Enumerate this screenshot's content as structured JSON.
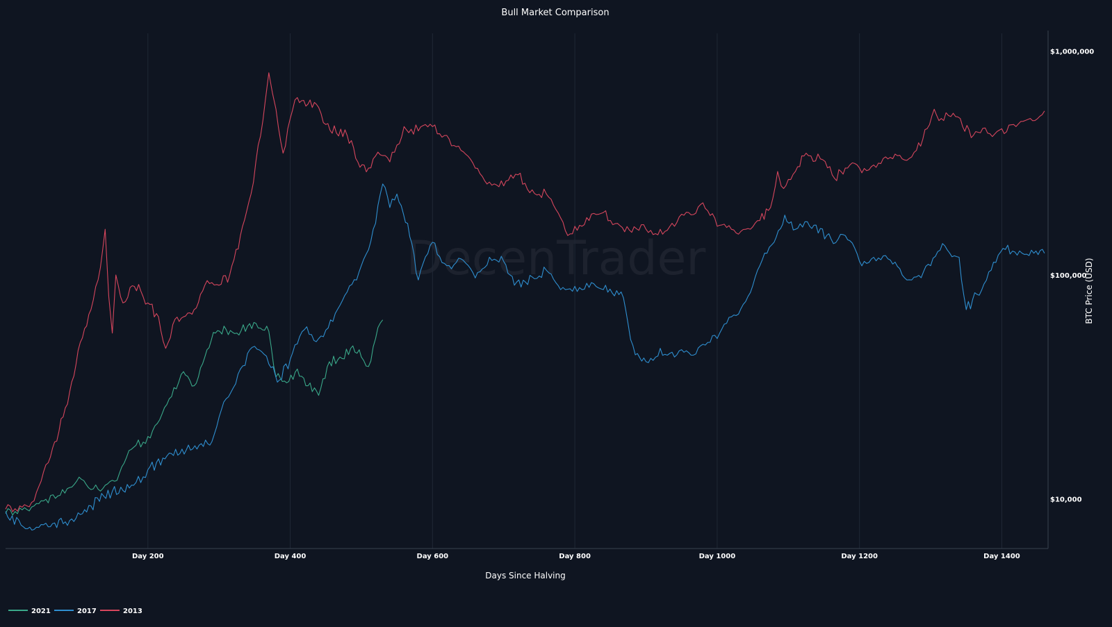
{
  "chart_data": {
    "type": "line",
    "title": "Bull Market Comparison",
    "xlabel": "Days Since Halving",
    "ylabel": "BTC Price (USD)",
    "y_scale": "log",
    "xlim": [
      0,
      1465
    ],
    "ylim": [
      6000,
      1200000
    ],
    "x_ticks": [
      200,
      400,
      600,
      800,
      1000,
      1200,
      1400
    ],
    "x_tick_labels": [
      "Day 200",
      "Day 400",
      "Day 600",
      "Day 800",
      "Day 1000",
      "Day 1200",
      "Day 1400"
    ],
    "y_ticks": [
      10000,
      100000,
      1000000
    ],
    "y_tick_labels": [
      "$10,000",
      "$100,000",
      "$1,000,000"
    ],
    "grid": true,
    "legend_position": "bottom-left",
    "watermark": "DecenTrader",
    "series": [
      {
        "name": "2021",
        "color": "#3aa98a",
        "points": [
          [
            0,
            8600
          ],
          [
            20,
            9100
          ],
          [
            40,
            9300
          ],
          [
            60,
            9600
          ],
          [
            80,
            11000
          ],
          [
            100,
            12000
          ],
          [
            120,
            11000
          ],
          [
            140,
            11500
          ],
          [
            160,
            13000
          ],
          [
            180,
            17000
          ],
          [
            200,
            19000
          ],
          [
            220,
            24000
          ],
          [
            240,
            31000
          ],
          [
            250,
            37000
          ],
          [
            265,
            32000
          ],
          [
            280,
            43000
          ],
          [
            295,
            55000
          ],
          [
            310,
            57000
          ],
          [
            325,
            55000
          ],
          [
            340,
            59000
          ],
          [
            355,
            58000
          ],
          [
            370,
            56000
          ],
          [
            380,
            35000
          ],
          [
            395,
            33000
          ],
          [
            410,
            38000
          ],
          [
            425,
            32000
          ],
          [
            440,
            29000
          ],
          [
            455,
            41000
          ],
          [
            470,
            43000
          ],
          [
            485,
            47000
          ],
          [
            500,
            43000
          ],
          [
            510,
            39000
          ],
          [
            520,
            52000
          ],
          [
            530,
            63000
          ]
        ]
      },
      {
        "name": "2017",
        "color": "#2f8fd0",
        "points": [
          [
            0,
            8800
          ],
          [
            25,
            7500
          ],
          [
            40,
            7300
          ],
          [
            60,
            7500
          ],
          [
            90,
            8000
          ],
          [
            120,
            9300
          ],
          [
            150,
            10800
          ],
          [
            180,
            11500
          ],
          [
            200,
            13500
          ],
          [
            230,
            16000
          ],
          [
            260,
            16500
          ],
          [
            290,
            18000
          ],
          [
            310,
            28000
          ],
          [
            330,
            38000
          ],
          [
            350,
            48000
          ],
          [
            370,
            40000
          ],
          [
            385,
            34000
          ],
          [
            400,
            42000
          ],
          [
            420,
            57000
          ],
          [
            440,
            52000
          ],
          [
            460,
            62000
          ],
          [
            480,
            84000
          ],
          [
            500,
            110000
          ],
          [
            520,
            170000
          ],
          [
            530,
            255000
          ],
          [
            540,
            200000
          ],
          [
            550,
            230000
          ],
          [
            565,
            170000
          ],
          [
            580,
            95000
          ],
          [
            600,
            140000
          ],
          [
            620,
            110000
          ],
          [
            640,
            118000
          ],
          [
            660,
            97000
          ],
          [
            680,
            120000
          ],
          [
            700,
            115000
          ],
          [
            715,
            90000
          ],
          [
            740,
            98000
          ],
          [
            760,
            105000
          ],
          [
            780,
            86000
          ],
          [
            800,
            89000
          ],
          [
            820,
            88000
          ],
          [
            840,
            86000
          ],
          [
            865,
            84000
          ],
          [
            885,
            44000
          ],
          [
            900,
            41000
          ],
          [
            920,
            47000
          ],
          [
            940,
            43000
          ],
          [
            960,
            45000
          ],
          [
            980,
            49000
          ],
          [
            1000,
            52000
          ],
          [
            1020,
            65000
          ],
          [
            1040,
            76000
          ],
          [
            1060,
            110000
          ],
          [
            1080,
            140000
          ],
          [
            1095,
            185000
          ],
          [
            1110,
            160000
          ],
          [
            1130,
            165000
          ],
          [
            1160,
            145000
          ],
          [
            1180,
            150000
          ],
          [
            1200,
            115000
          ],
          [
            1220,
            120000
          ],
          [
            1240,
            118000
          ],
          [
            1260,
            100000
          ],
          [
            1280,
            98000
          ],
          [
            1300,
            110000
          ],
          [
            1320,
            135000
          ],
          [
            1340,
            120000
          ],
          [
            1350,
            70000
          ],
          [
            1365,
            82000
          ],
          [
            1385,
            105000
          ],
          [
            1405,
            130000
          ],
          [
            1425,
            128000
          ],
          [
            1445,
            125000
          ],
          [
            1460,
            125000
          ]
        ]
      },
      {
        "name": "2013",
        "color": "#d6465d",
        "points": [
          [
            0,
            9000
          ],
          [
            20,
            9300
          ],
          [
            40,
            9800
          ],
          [
            50,
            12000
          ],
          [
            60,
            14500
          ],
          [
            75,
            20000
          ],
          [
            90,
            30000
          ],
          [
            105,
            50000
          ],
          [
            120,
            70000
          ],
          [
            130,
            95000
          ],
          [
            140,
            160000
          ],
          [
            145,
            80000
          ],
          [
            150,
            55000
          ],
          [
            155,
            100000
          ],
          [
            165,
            75000
          ],
          [
            175,
            88000
          ],
          [
            190,
            85000
          ],
          [
            200,
            75000
          ],
          [
            215,
            65000
          ],
          [
            225,
            47000
          ],
          [
            235,
            60000
          ],
          [
            250,
            65000
          ],
          [
            265,
            70000
          ],
          [
            280,
            90000
          ],
          [
            300,
            90000
          ],
          [
            315,
            100000
          ],
          [
            330,
            150000
          ],
          [
            345,
            230000
          ],
          [
            355,
            380000
          ],
          [
            365,
            600000
          ],
          [
            370,
            800000
          ],
          [
            375,
            650000
          ],
          [
            380,
            550000
          ],
          [
            390,
            350000
          ],
          [
            400,
            500000
          ],
          [
            410,
            620000
          ],
          [
            425,
            580000
          ],
          [
            440,
            560000
          ],
          [
            450,
            470000
          ],
          [
            465,
            430000
          ],
          [
            480,
            420000
          ],
          [
            495,
            320000
          ],
          [
            510,
            300000
          ],
          [
            520,
            340000
          ],
          [
            540,
            320000
          ],
          [
            550,
            380000
          ],
          [
            560,
            460000
          ],
          [
            580,
            440000
          ],
          [
            600,
            460000
          ],
          [
            620,
            420000
          ],
          [
            640,
            360000
          ],
          [
            660,
            300000
          ],
          [
            680,
            260000
          ],
          [
            700,
            250000
          ],
          [
            720,
            280000
          ],
          [
            740,
            240000
          ],
          [
            760,
            230000
          ],
          [
            780,
            180000
          ],
          [
            790,
            150000
          ],
          [
            800,
            165000
          ],
          [
            820,
            175000
          ],
          [
            840,
            190000
          ],
          [
            860,
            170000
          ],
          [
            880,
            155000
          ],
          [
            900,
            160000
          ],
          [
            920,
            160000
          ],
          [
            940,
            165000
          ],
          [
            960,
            190000
          ],
          [
            980,
            210000
          ],
          [
            1000,
            165000
          ],
          [
            1020,
            160000
          ],
          [
            1040,
            160000
          ],
          [
            1060,
            175000
          ],
          [
            1075,
            200000
          ],
          [
            1085,
            290000
          ],
          [
            1090,
            250000
          ],
          [
            1110,
            290000
          ],
          [
            1125,
            350000
          ],
          [
            1145,
            330000
          ],
          [
            1165,
            270000
          ],
          [
            1180,
            300000
          ],
          [
            1200,
            300000
          ],
          [
            1220,
            310000
          ],
          [
            1240,
            330000
          ],
          [
            1260,
            330000
          ],
          [
            1280,
            360000
          ],
          [
            1295,
            450000
          ],
          [
            1305,
            550000
          ],
          [
            1315,
            500000
          ],
          [
            1335,
            510000
          ],
          [
            1345,
            460000
          ],
          [
            1360,
            420000
          ],
          [
            1380,
            430000
          ],
          [
            1400,
            450000
          ],
          [
            1420,
            460000
          ],
          [
            1440,
            500000
          ],
          [
            1460,
            540000
          ]
        ]
      }
    ]
  }
}
